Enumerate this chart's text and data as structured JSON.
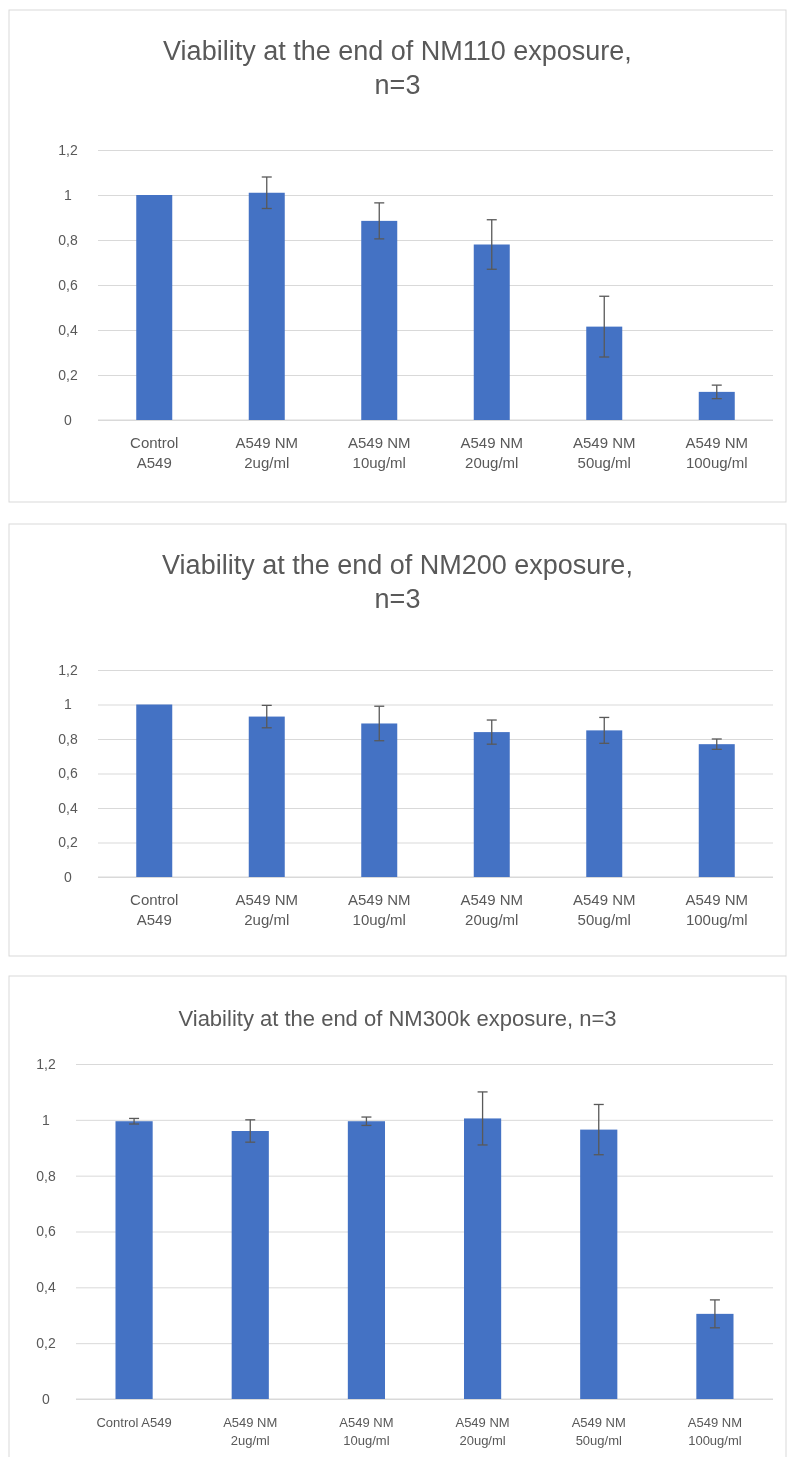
{
  "chart_data": [
    {
      "type": "bar",
      "title": "Viability at the end of NM110 exposure,\nn=3",
      "categories": [
        "Control\nA549",
        "A549 NM\n2ug/ml",
        "A549 NM\n10ug/ml",
        "A549 NM\n20ug/ml",
        "A549 NM\n50ug/ml",
        "A549 NM\n100ug/ml"
      ],
      "values": [
        1.0,
        1.01,
        0.885,
        0.78,
        0.415,
        0.125
      ],
      "errors": [
        null,
        0.07,
        0.08,
        0.11,
        0.135,
        0.03
      ],
      "color": "#4472c4",
      "ylim": [
        0,
        1.2
      ],
      "yticks": [
        {
          "value": 0,
          "label": "0"
        },
        {
          "value": 0.2,
          "label": "0,2"
        },
        {
          "value": 0.4,
          "label": "0,4"
        },
        {
          "value": 0.6,
          "label": "0,6"
        },
        {
          "value": 0.8,
          "label": "0,8"
        },
        {
          "value": 1,
          "label": "1"
        },
        {
          "value": 1.2,
          "label": "1,2"
        }
      ],
      "grid": "y"
    },
    {
      "type": "bar",
      "title": "Viability at the end of NM200 exposure,\nn=3",
      "categories": [
        "Control\nA549",
        "A549 NM\n2ug/ml",
        "A549 NM\n10ug/ml",
        "A549 NM\n20ug/ml",
        "A549 NM\n50ug/ml",
        "A549 NM\n100ug/ml"
      ],
      "values": [
        1.0,
        0.93,
        0.89,
        0.84,
        0.85,
        0.77
      ],
      "errors": [
        null,
        0.065,
        0.1,
        0.07,
        0.075,
        0.03
      ],
      "color": "#4472c4",
      "ylim": [
        0,
        1.2
      ],
      "yticks": [
        {
          "value": 0,
          "label": "0"
        },
        {
          "value": 0.2,
          "label": "0,2"
        },
        {
          "value": 0.4,
          "label": "0,4"
        },
        {
          "value": 0.6,
          "label": "0,6"
        },
        {
          "value": 0.8,
          "label": "0,8"
        },
        {
          "value": 1,
          "label": "1"
        },
        {
          "value": 1.2,
          "label": "1,2"
        }
      ],
      "grid": "y"
    },
    {
      "type": "bar",
      "title": "Viability at the end of NM300k exposure, n=3",
      "categories": [
        "Control  A549",
        "A549 NM\n2ug/ml",
        "A549 NM\n10ug/ml",
        "A549 NM\n20ug/ml",
        "A549 NM\n50ug/ml",
        "A549 NM\n100ug/ml"
      ],
      "values": [
        0.995,
        0.96,
        0.995,
        1.005,
        0.965,
        0.305
      ],
      "errors": [
        0.01,
        0.04,
        0.015,
        0.095,
        0.09,
        0.05
      ],
      "color": "#4472c4",
      "ylim": [
        0,
        1.2
      ],
      "yticks": [
        {
          "value": 0,
          "label": "0"
        },
        {
          "value": 0.2,
          "label": "0,2"
        },
        {
          "value": 0.4,
          "label": "0,4"
        },
        {
          "value": 0.6,
          "label": "0,6"
        },
        {
          "value": 0.8,
          "label": "0,8"
        },
        {
          "value": 1,
          "label": "1"
        },
        {
          "value": 1.2,
          "label": "1,2"
        }
      ],
      "grid": "y"
    }
  ]
}
